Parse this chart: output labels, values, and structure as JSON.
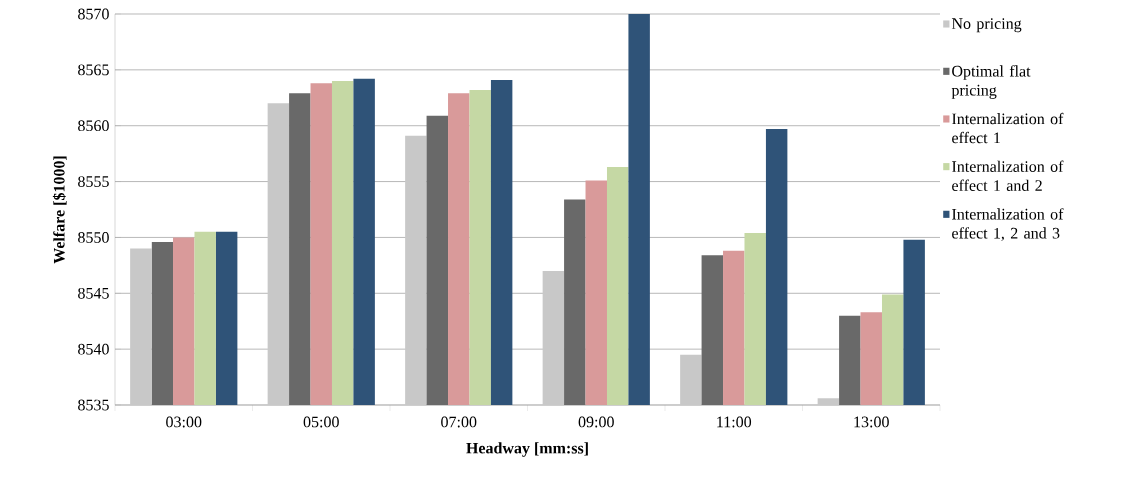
{
  "chart_data": {
    "type": "bar",
    "xlabel": "Headway [mm:ss]",
    "ylabel": "Welfare [$1000]",
    "categories": [
      "03:00",
      "05:00",
      "07:00",
      "09:00",
      "11:00",
      "13:00"
    ],
    "series": [
      {
        "name": "No pricing",
        "color": "#c8c8c8",
        "values": [
          8549.0,
          8562.0,
          8559.1,
          8547.0,
          8539.5,
          8535.6
        ]
      },
      {
        "name": "Optimal flat pricing",
        "color": "#696969",
        "values": [
          8549.6,
          8562.9,
          8560.9,
          8553.4,
          8548.4,
          8543.0
        ]
      },
      {
        "name": "Internalization of effect 1",
        "color": "#d99a9a",
        "values": [
          8550.0,
          8563.8,
          8562.9,
          8555.1,
          8548.8,
          8543.3
        ]
      },
      {
        "name": "Internalization of effect 1 and 2",
        "color": "#c5d8a4",
        "values": [
          8550.5,
          8564.0,
          8563.2,
          8556.3,
          8550.4,
          8544.9
        ]
      },
      {
        "name": "Internalization of effect 1, 2 and 3",
        "color": "#2f5378",
        "values": [
          8550.5,
          8564.2,
          8564.1,
          8570,
          8559.7,
          8549.8
        ]
      }
    ],
    "ylim": [
      8535,
      8570
    ],
    "yticks": [
      8535,
      8540,
      8545,
      8550,
      8555,
      8560,
      8565,
      8570
    ],
    "grid": "y",
    "legend": "right"
  }
}
